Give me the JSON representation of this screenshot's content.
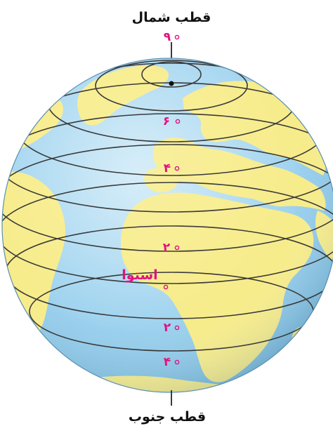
{
  "labels": {
    "north_pole": "قطب شمال",
    "south_pole": "قطب جنوب",
    "equator": "استوا",
    "lat_90": "۹",
    "lat_60": "۶",
    "lat_40_north": "۴",
    "lat_20_north": "۲",
    "lat_20_south": "۲",
    "lat_40_south": "۴",
    "lat_0": ""
  },
  "colors": {
    "ocean": "#9fd3ef",
    "land": "#f7ec8a",
    "lines": "#3a3a3a",
    "degree_text": "#e0137f",
    "pole_text": "#111111"
  }
}
